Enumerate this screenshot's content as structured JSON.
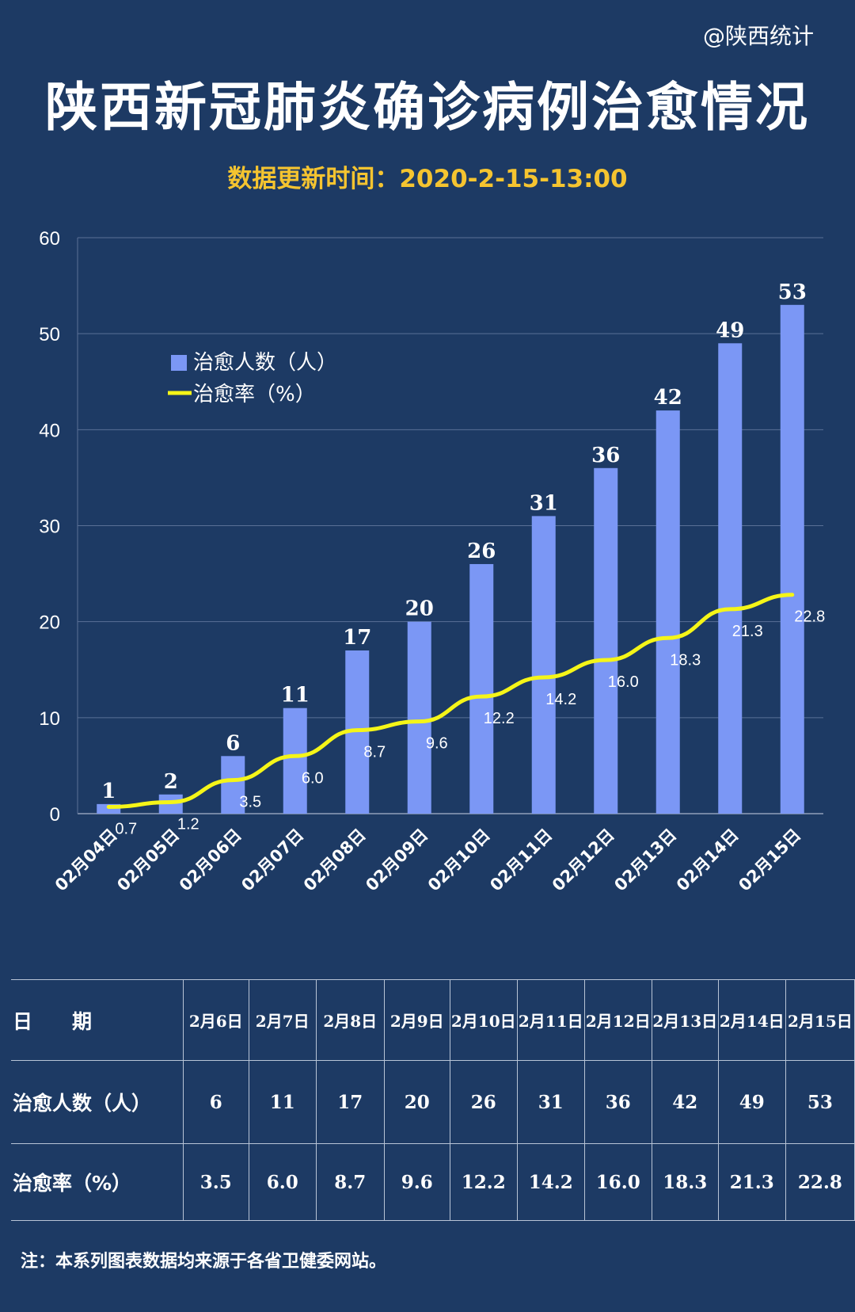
{
  "credit": "@陕西统计",
  "title": "陕西新冠肺炎确诊病例治愈情况",
  "subtitle": "数据更新时间：2020-2-15-13:00",
  "colors": {
    "background": "#1d3a64",
    "bar": "#7b97f5",
    "line": "#f5f518",
    "subtitle": "#f5c430"
  },
  "chart_data": {
    "type": "bar",
    "categories": [
      "02月04日",
      "02月05日",
      "02月06日",
      "02月07日",
      "02月08日",
      "02月09日",
      "02月10日",
      "02月11日",
      "02月12日",
      "02月13日",
      "02月14日",
      "02月15日"
    ],
    "series": [
      {
        "name": "治愈人数（人）",
        "type": "bar",
        "values": [
          1,
          2,
          6,
          11,
          17,
          20,
          26,
          31,
          36,
          42,
          49,
          53
        ]
      },
      {
        "name": "治愈率（%）",
        "type": "line",
        "values": [
          0.7,
          1.2,
          3.5,
          6.0,
          8.7,
          9.6,
          12.2,
          14.2,
          16.0,
          18.3,
          21.3,
          22.8
        ]
      }
    ],
    "ylim": [
      0,
      60
    ],
    "yticks": [
      0,
      10,
      20,
      30,
      40,
      50,
      60
    ],
    "grid": true,
    "legend_position": "upper-left"
  },
  "table": {
    "headers": [
      "日　　期",
      "2月6日",
      "2月7日",
      "2月8日",
      "2月9日",
      "2月10日",
      "2月11日",
      "2月12日",
      "2月13日",
      "2月14日",
      "2月15日"
    ],
    "rows": [
      [
        "治愈人数（人）",
        "6",
        "11",
        "17",
        "20",
        "26",
        "31",
        "36",
        "42",
        "49",
        "53"
      ],
      [
        "治愈率（%）",
        "3.5",
        "6.0",
        "8.7",
        "9.6",
        "12.2",
        "14.2",
        "16.0",
        "18.3",
        "21.3",
        "22.8"
      ]
    ]
  },
  "note": "注：本系列图表数据均来源于各省卫健委网站。"
}
